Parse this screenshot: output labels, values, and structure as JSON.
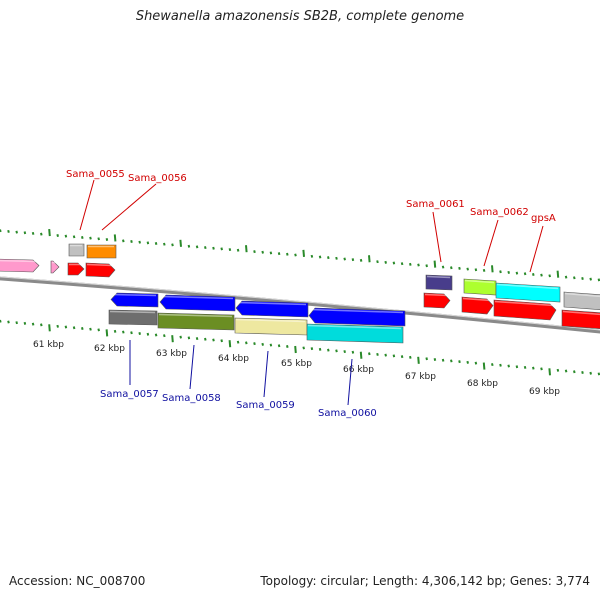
{
  "title": "Shewanella amazonensis SB2B, complete genome",
  "accession": "Accession: NC_008700",
  "summary": "Topology: circular; Length: 4,306,142 bp; Genes: 3,774",
  "ticks": [
    {
      "label": "61 kbp"
    },
    {
      "label": "62 kbp"
    },
    {
      "label": "63 kbp"
    },
    {
      "label": "64 kbp"
    },
    {
      "label": "65 kbp"
    },
    {
      "label": "66 kbp"
    },
    {
      "label": "67 kbp"
    },
    {
      "label": "68 kbp"
    },
    {
      "label": "69 kbp"
    }
  ],
  "genes_top": [
    {
      "name": "Sama_0055",
      "color": "#d10000"
    },
    {
      "name": "Sama_0056",
      "color": "#d10000"
    },
    {
      "name": "Sama_0061",
      "color": "#d10000"
    },
    {
      "name": "Sama_0062",
      "color": "#d10000"
    },
    {
      "name": "gpsA",
      "color": "#d10000"
    }
  ],
  "genes_bottom": [
    {
      "name": "Sama_0057",
      "color": "#1010a0"
    },
    {
      "name": "Sama_0058",
      "color": "#1010a0"
    },
    {
      "name": "Sama_0059",
      "color": "#1010a0"
    },
    {
      "name": "Sama_0060",
      "color": "#1010a0"
    }
  ],
  "colors": {
    "backbone": "#8a8a8a",
    "tick": "#2a8a2a",
    "cds_forward": "#ff0000",
    "cds_reverse": "#0000ff",
    "pink": "#ff99cc",
    "grey": "#c0c0c0",
    "dark_grey": "#6e6e6e",
    "orange": "#ff8c00",
    "olive": "#6b8e23",
    "khaki": "#eee8a0",
    "cyan": "#00dcdc",
    "light_cyan": "#00ffff",
    "lime": "#adff2f",
    "slate": "#483d8b"
  }
}
